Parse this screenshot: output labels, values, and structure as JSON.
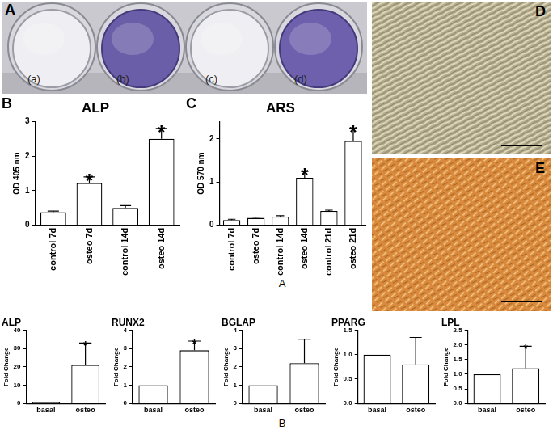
{
  "figure": {
    "photo_panels": [
      {
        "letter": "A",
        "well_labels": [
          "(a)",
          "(b)",
          "(c)",
          "(d)"
        ]
      },
      {
        "letter": "D"
      },
      {
        "letter": "E"
      }
    ],
    "captions": [
      "A",
      "B"
    ]
  },
  "chart_data": [
    {
      "type": "bar",
      "panel": "B",
      "title": "ALP",
      "y_label": "OD 405 nm",
      "categories": [
        "control 7d",
        "osteo 7d",
        "control 14d",
        "osteo 14d"
      ],
      "values": [
        0.38,
        1.22,
        0.5,
        2.5
      ],
      "errors": [
        0.03,
        0.18,
        0.07,
        0.3
      ],
      "annotations": [
        {
          "category": "osteo 7d",
          "text": "*"
        },
        {
          "category": "osteo 14d",
          "text": "*"
        }
      ],
      "color": "#ffffff",
      "ylim": [
        0,
        3
      ],
      "yticks": [
        0,
        1,
        2,
        3
      ],
      "grid": false
    },
    {
      "type": "bar",
      "panel": "C",
      "title": "ARS",
      "y_label": "OD 570 nm",
      "categories": [
        "control 7d",
        "osteo 7d",
        "control 14d",
        "osteo 14d",
        "control 21d",
        "osteo 21d"
      ],
      "values": [
        0.12,
        0.17,
        0.2,
        1.1,
        0.33,
        1.95
      ],
      "errors": [
        0.02,
        0.02,
        0.02,
        0.15,
        0.02,
        0.3
      ],
      "annotations": [
        {
          "category": "osteo 14d",
          "text": "*"
        },
        {
          "category": "osteo 21d",
          "text": "*"
        }
      ],
      "color": "#ffffff",
      "ylim": [
        0,
        2.4
      ],
      "yticks": [
        0,
        1,
        2
      ],
      "grid": false
    },
    {
      "type": "bar",
      "title": "ALP",
      "y_label": "Fold Change",
      "categories": [
        "basal",
        "osteo"
      ],
      "values": [
        1,
        21
      ],
      "errors": [
        0,
        12
      ],
      "annotations": [
        {
          "category": "osteo",
          "text": "*"
        }
      ],
      "color": "#ffffff",
      "ylim": [
        0,
        40
      ],
      "yticks": [
        0,
        10,
        20,
        30,
        40
      ],
      "grid": false
    },
    {
      "type": "bar",
      "title": "RUNX2",
      "y_label": "Fold Change",
      "categories": [
        "basal",
        "osteo"
      ],
      "values": [
        1,
        2.9
      ],
      "errors": [
        0,
        0.5
      ],
      "annotations": [
        {
          "category": "osteo",
          "text": "*"
        }
      ],
      "color": "#ffffff",
      "ylim": [
        0,
        4
      ],
      "yticks": [
        0,
        1,
        2,
        3,
        4
      ],
      "grid": false
    },
    {
      "type": "bar",
      "title": "BGLAP",
      "y_label": "Fold Change",
      "categories": [
        "basal",
        "osteo"
      ],
      "values": [
        1,
        2.2
      ],
      "errors": [
        0,
        1.3
      ],
      "color": "#ffffff",
      "ylim": [
        0,
        4
      ],
      "yticks": [
        0,
        1,
        2,
        3,
        4
      ],
      "grid": false
    },
    {
      "type": "bar",
      "title": "PPARG",
      "y_label": "Fold Change",
      "categories": [
        "basal",
        "osteo"
      ],
      "values": [
        1,
        0.8
      ],
      "errors": [
        0,
        0.55
      ],
      "color": "#ffffff",
      "ylim": [
        0,
        1.5
      ],
      "yticks": [
        {
          "value": 0,
          "label": "0.0"
        },
        {
          "value": 0.5,
          "label": "0.5"
        },
        {
          "value": 1,
          "label": "1.0"
        },
        {
          "value": 1.5,
          "label": "1.5"
        }
      ],
      "grid": false
    },
    {
      "type": "bar",
      "title": "LPL",
      "y_label": "Fold Change",
      "categories": [
        "basal",
        "osteo"
      ],
      "values": [
        1,
        1.2
      ],
      "errors": [
        0,
        0.75
      ],
      "annotations": [
        {
          "category": "osteo",
          "text": "*"
        }
      ],
      "color": "#ffffff",
      "ylim": [
        0,
        2.5
      ],
      "yticks": [
        {
          "value": 0,
          "label": "0.0"
        },
        {
          "value": 0.5,
          "label": "0.5"
        },
        {
          "value": 1,
          "label": "1.0"
        },
        {
          "value": 1.5,
          "label": "1.5"
        },
        {
          "value": 2,
          "label": "2.0"
        },
        {
          "value": 2.5,
          "label": "2.5"
        }
      ],
      "grid": false
    }
  ]
}
